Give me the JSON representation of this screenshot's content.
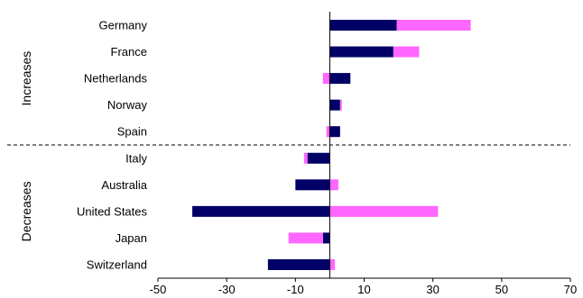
{
  "chart_data": {
    "type": "bar",
    "orientation": "horizontal",
    "stacking": "diverging",
    "title": "",
    "xlabel": "",
    "ylabel": "",
    "xlim": [
      -50,
      70
    ],
    "x_ticks": [
      -50,
      -30,
      -10,
      10,
      30,
      50,
      70
    ],
    "grid": false,
    "legend": "none",
    "categories": [
      "Germany",
      "France",
      "Netherlands",
      "Norway",
      "Spain",
      "Italy",
      "Australia",
      "United States",
      "Japan",
      "Switzerland"
    ],
    "groups": [
      {
        "label": "Increases",
        "categories": [
          "Germany",
          "France",
          "Netherlands",
          "Norway",
          "Spain"
        ]
      },
      {
        "label": "Decreases",
        "categories": [
          "Italy",
          "Australia",
          "United States",
          "Japan",
          "Switzerland"
        ]
      }
    ],
    "series": [
      {
        "color": "#000066",
        "values": [
          19.5,
          18.5,
          6,
          3,
          3,
          -6.5,
          -10,
          -40,
          -2,
          -18
        ]
      },
      {
        "color": "#ff66ff",
        "values": [
          21.5,
          7.5,
          -2,
          0.5,
          -1,
          -1,
          2.5,
          31.5,
          -10,
          1.5
        ]
      }
    ]
  }
}
